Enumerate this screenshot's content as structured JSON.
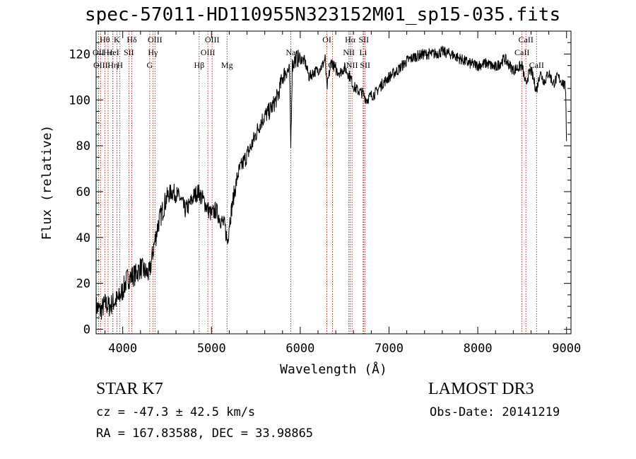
{
  "title": "spec-57011-HD110955N323152M01_sp15-035.fits",
  "info": {
    "class_text": "STAR    K7",
    "survey": "LAMOST DR3",
    "cz_text": "cz = -47.3 ± 42.5 km/s",
    "obs_date_text": "Obs-Date: 20141219",
    "radec_text": "RA = 167.83588, DEC =  33.98865"
  },
  "colors": {
    "spectrum": "#000000",
    "line_markers": "#b30000",
    "axes": "#000000",
    "background": "#ffffff"
  },
  "chart_data": {
    "type": "line",
    "title": "spec-57011-HD110955N323152M01_sp15-035.fits",
    "xlabel": "Wavelength (Å)",
    "ylabel": "Flux (relative)",
    "xlim": [
      3700,
      9050
    ],
    "ylim": [
      -2,
      130
    ],
    "xticks": [
      4000,
      5000,
      6000,
      7000,
      8000,
      9000
    ],
    "yticks": [
      0,
      20,
      40,
      60,
      80,
      100,
      120
    ],
    "grid": false,
    "series": [
      {
        "values_description": "flux vs wavelength (approximate readout)",
        "x": [
          3700,
          3750,
          3800,
          3850,
          3900,
          3950,
          4000,
          4050,
          4100,
          4150,
          4200,
          4250,
          4300,
          4350,
          4400,
          4450,
          4500,
          4550,
          4600,
          4650,
          4700,
          4750,
          4800,
          4850,
          4900,
          4950,
          5000,
          5050,
          5100,
          5150,
          5180,
          5200,
          5250,
          5300,
          5350,
          5400,
          5450,
          5500,
          5550,
          5600,
          5650,
          5700,
          5750,
          5800,
          5850,
          5880,
          5893,
          5910,
          5950,
          6000,
          6050,
          6100,
          6150,
          6200,
          6250,
          6280,
          6300,
          6350,
          6400,
          6450,
          6500,
          6563,
          6600,
          6650,
          6700,
          6750,
          6800,
          6850,
          6900,
          7000,
          7100,
          7200,
          7300,
          7400,
          7500,
          7600,
          7700,
          7800,
          7900,
          8000,
          8100,
          8200,
          8300,
          8400,
          8500,
          8542,
          8560,
          8600,
          8662,
          8700,
          8750,
          8800,
          8850,
          8900,
          8950,
          8990,
          9000
        ],
        "y": [
          10,
          8,
          11,
          10,
          12,
          13,
          17,
          22,
          23,
          24,
          27,
          25,
          24,
          36,
          46,
          52,
          58,
          60,
          59,
          57,
          52,
          54,
          58,
          60,
          57,
          53,
          50,
          52,
          48,
          45,
          38,
          46,
          58,
          68,
          72,
          76,
          80,
          85,
          90,
          93,
          95,
          98,
          102,
          110,
          113,
          112,
          80,
          115,
          118,
          118,
          117,
          110,
          112,
          113,
          115,
          118,
          105,
          117,
          113,
          112,
          114,
          110,
          106,
          104,
          103,
          100,
          102,
          103,
          106,
          110,
          113,
          117,
          119,
          120,
          120,
          121,
          120,
          118,
          116,
          115,
          116,
          114,
          118,
          113,
          115,
          106,
          110,
          113,
          104,
          112,
          108,
          112,
          107,
          110,
          108,
          105,
          82
        ]
      }
    ],
    "line_markers": [
      {
        "label": "Hθ",
        "x": 3798,
        "row": 0
      },
      {
        "label": "OII",
        "x": 3727,
        "row": 1
      },
      {
        "label": "OIII",
        "x": 3750,
        "row": 2
      },
      {
        "label": "Hε",
        "x": 3835,
        "row": 1
      },
      {
        "label": "Hη",
        "x": 3889,
        "row": 2
      },
      {
        "label": "K",
        "x": 3934,
        "row": 0
      },
      {
        "label": "HeI",
        "x": 3889,
        "row": 1
      },
      {
        "label": "H",
        "x": 3968,
        "row": 2
      },
      {
        "label": "SII",
        "x": 4069,
        "row": 1
      },
      {
        "label": "Hδ",
        "x": 4102,
        "row": 0
      },
      {
        "label": "OIII",
        "x": 4363,
        "row": 0
      },
      {
        "label": "Hγ",
        "x": 4340,
        "row": 1
      },
      {
        "label": "G",
        "x": 4304,
        "row": 2
      },
      {
        "label": "Hβ",
        "x": 4861,
        "row": 2
      },
      {
        "label": "OIII",
        "x": 5007,
        "row": 0
      },
      {
        "label": "OIII",
        "x": 4959,
        "row": 1
      },
      {
        "label": "Mg",
        "x": 5175,
        "row": 2
      },
      {
        "label": "Na",
        "x": 5893,
        "row": 1
      },
      {
        "label": "OI",
        "x": 6300,
        "row": 0
      },
      {
        "label": "OI",
        "x": 6364,
        "row": 2
      },
      {
        "label": "Hα",
        "x": 6563,
        "row": 0
      },
      {
        "label": "SII",
        "x": 6716,
        "row": 0
      },
      {
        "label": "NII",
        "x": 6548,
        "row": 1
      },
      {
        "label": "Li",
        "x": 6708,
        "row": 1
      },
      {
        "label": "NII",
        "x": 6583,
        "row": 2
      },
      {
        "label": "SII",
        "x": 6731,
        "row": 2
      },
      {
        "label": "CaII",
        "x": 8542,
        "row": 0
      },
      {
        "label": "CaII",
        "x": 8498,
        "row": 1
      },
      {
        "label": "CaII",
        "x": 8662,
        "row": 2
      }
    ]
  }
}
